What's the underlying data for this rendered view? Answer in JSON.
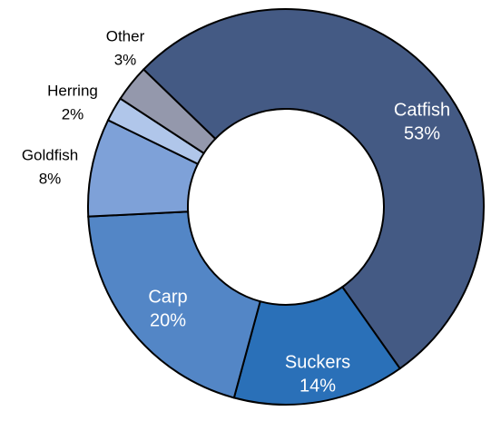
{
  "chart_data": {
    "type": "donut",
    "categories": [
      "Catfish",
      "Suckers",
      "Carp",
      "Goldfish",
      "Herring",
      "Other"
    ],
    "values": [
      53,
      14,
      20,
      8,
      2,
      3
    ],
    "value_labels": [
      "53%",
      "14%",
      "20%",
      "8%",
      "2%",
      "3%"
    ],
    "colors": [
      "#445a84",
      "#2a70b8",
      "#5386c6",
      "#7ea1d8",
      "#b0c6ea",
      "#9498ac"
    ]
  }
}
